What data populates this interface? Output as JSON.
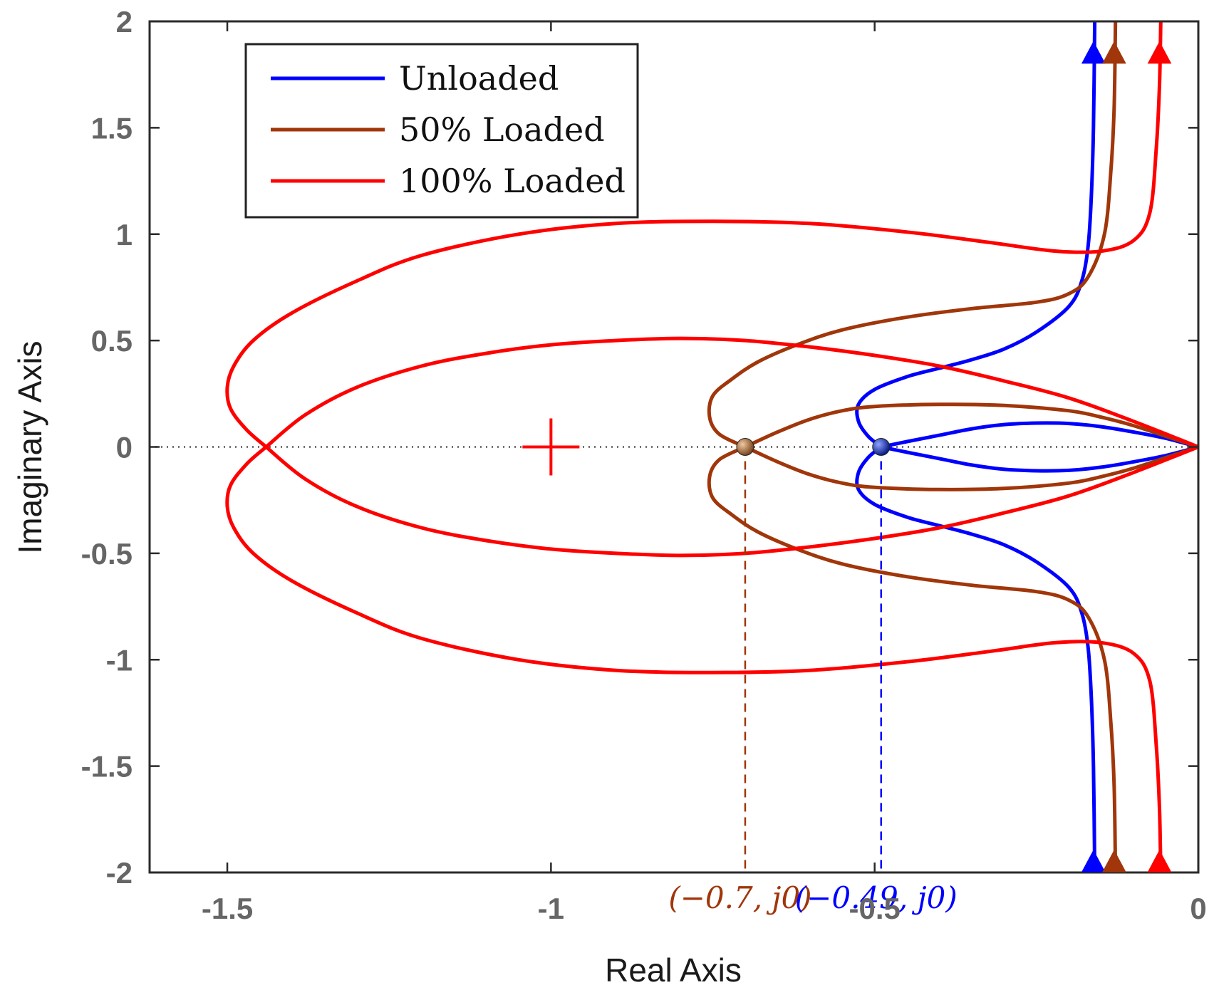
{
  "chart_data": {
    "type": "line",
    "title": "",
    "xlabel": "Real Axis",
    "ylabel": "Imaginary Axis",
    "xlim": [
      -1.62,
      0
    ],
    "ylim": [
      -2,
      2
    ],
    "grid": false,
    "legend_position": "top-left",
    "x_ticks": [
      {
        "value": -1.5,
        "label": "-1.5"
      },
      {
        "value": -1,
        "label": "-1"
      },
      {
        "value": -0.5,
        "label": "-0.5"
      },
      {
        "value": 0,
        "label": "0"
      }
    ],
    "y_ticks": [
      {
        "value": 2,
        "label": "2"
      },
      {
        "value": 1.5,
        "label": "1.5"
      },
      {
        "value": 1,
        "label": "1"
      },
      {
        "value": 0.5,
        "label": "0.5"
      },
      {
        "value": 0,
        "label": "0"
      },
      {
        "value": -0.5,
        "label": "-0.5"
      },
      {
        "value": -1,
        "label": "-1"
      },
      {
        "value": -1.5,
        "label": "-1.5"
      },
      {
        "value": -2,
        "label": "-2"
      }
    ],
    "series": [
      {
        "name": "Unloaded",
        "color": "#0000ff",
        "branches": [
          [
            [
              0,
              0
            ],
            [
              -0.05,
              0.04
            ],
            [
              -0.1,
              0.07
            ],
            [
              -0.15,
              0.095
            ],
            [
              -0.2,
              0.11
            ],
            [
              -0.25,
              0.112
            ],
            [
              -0.3,
              0.105
            ],
            [
              -0.35,
              0.085
            ],
            [
              -0.4,
              0.055
            ],
            [
              -0.45,
              0.025
            ],
            [
              -0.49,
              0
            ]
          ],
          [
            [
              0,
              0
            ],
            [
              -0.05,
              -0.04
            ],
            [
              -0.1,
              -0.07
            ],
            [
              -0.15,
              -0.095
            ],
            [
              -0.2,
              -0.11
            ],
            [
              -0.25,
              -0.112
            ],
            [
              -0.3,
              -0.105
            ],
            [
              -0.35,
              -0.085
            ],
            [
              -0.4,
              -0.055
            ],
            [
              -0.45,
              -0.025
            ],
            [
              -0.49,
              0
            ]
          ],
          [
            [
              -0.49,
              0
            ],
            [
              -0.51,
              0.05
            ],
            [
              -0.525,
              0.12
            ],
            [
              -0.525,
              0.2
            ],
            [
              -0.5,
              0.27
            ],
            [
              -0.45,
              0.33
            ],
            [
              -0.4,
              0.37
            ],
            [
              -0.35,
              0.41
            ],
            [
              -0.3,
              0.46
            ],
            [
              -0.25,
              0.54
            ],
            [
              -0.2,
              0.66
            ],
            [
              -0.18,
              0.78
            ],
            [
              -0.17,
              0.95
            ],
            [
              -0.165,
              1.2
            ],
            [
              -0.162,
              1.5
            ],
            [
              -0.16,
              2
            ]
          ],
          [
            [
              -0.49,
              0
            ],
            [
              -0.51,
              -0.05
            ],
            [
              -0.525,
              -0.12
            ],
            [
              -0.525,
              -0.2
            ],
            [
              -0.5,
              -0.27
            ],
            [
              -0.45,
              -0.33
            ],
            [
              -0.4,
              -0.37
            ],
            [
              -0.35,
              -0.41
            ],
            [
              -0.3,
              -0.46
            ],
            [
              -0.25,
              -0.54
            ],
            [
              -0.2,
              -0.66
            ],
            [
              -0.18,
              -0.78
            ],
            [
              -0.17,
              -0.95
            ],
            [
              -0.165,
              -1.2
            ],
            [
              -0.162,
              -1.5
            ],
            [
              -0.16,
              -2
            ]
          ]
        ],
        "arrows": [
          [
            -0.162,
            1.85
          ],
          [
            -0.162,
            -1.95
          ]
        ]
      },
      {
        "name": "50% Loaded",
        "color": "#a0360a",
        "branches": [
          [
            [
              0,
              0
            ],
            [
              -0.05,
              0.05
            ],
            [
              -0.1,
              0.1
            ],
            [
              -0.15,
              0.14
            ],
            [
              -0.2,
              0.17
            ],
            [
              -0.3,
              0.195
            ],
            [
              -0.4,
              0.2
            ],
            [
              -0.5,
              0.19
            ],
            [
              -0.55,
              0.17
            ],
            [
              -0.6,
              0.13
            ],
            [
              -0.65,
              0.07
            ],
            [
              -0.7,
              0
            ]
          ],
          [
            [
              0,
              0
            ],
            [
              -0.05,
              -0.05
            ],
            [
              -0.1,
              -0.1
            ],
            [
              -0.15,
              -0.14
            ],
            [
              -0.2,
              -0.17
            ],
            [
              -0.3,
              -0.195
            ],
            [
              -0.4,
              -0.2
            ],
            [
              -0.5,
              -0.19
            ],
            [
              -0.55,
              -0.17
            ],
            [
              -0.6,
              -0.13
            ],
            [
              -0.65,
              -0.07
            ],
            [
              -0.7,
              0
            ]
          ],
          [
            [
              -0.7,
              0
            ],
            [
              -0.74,
              0.06
            ],
            [
              -0.755,
              0.14
            ],
            [
              -0.75,
              0.24
            ],
            [
              -0.72,
              0.32
            ],
            [
              -0.68,
              0.4
            ],
            [
              -0.62,
              0.48
            ],
            [
              -0.55,
              0.55
            ],
            [
              -0.45,
              0.61
            ],
            [
              -0.35,
              0.65
            ],
            [
              -0.25,
              0.68
            ],
            [
              -0.2,
              0.72
            ],
            [
              -0.17,
              0.8
            ],
            [
              -0.145,
              1.0
            ],
            [
              -0.135,
              1.3
            ],
            [
              -0.13,
              1.6
            ],
            [
              -0.128,
              2
            ]
          ],
          [
            [
              -0.7,
              0
            ],
            [
              -0.74,
              -0.06
            ],
            [
              -0.755,
              -0.14
            ],
            [
              -0.75,
              -0.24
            ],
            [
              -0.72,
              -0.32
            ],
            [
              -0.68,
              -0.4
            ],
            [
              -0.62,
              -0.48
            ],
            [
              -0.55,
              -0.55
            ],
            [
              -0.45,
              -0.61
            ],
            [
              -0.35,
              -0.65
            ],
            [
              -0.25,
              -0.68
            ],
            [
              -0.2,
              -0.72
            ],
            [
              -0.17,
              -0.8
            ],
            [
              -0.145,
              -1.0
            ],
            [
              -0.135,
              -1.3
            ],
            [
              -0.13,
              -1.6
            ],
            [
              -0.128,
              -2
            ]
          ]
        ],
        "arrows": [
          [
            -0.13,
            1.85
          ],
          [
            -0.13,
            -1.95
          ]
        ]
      },
      {
        "name": "100% Loaded",
        "color": "#ff0000",
        "branches": [
          [
            [
              0,
              0
            ],
            [
              -0.1,
              0.12
            ],
            [
              -0.2,
              0.23
            ],
            [
              -0.3,
              0.31
            ],
            [
              -0.4,
              0.38
            ],
            [
              -0.5,
              0.43
            ],
            [
              -0.6,
              0.47
            ],
            [
              -0.7,
              0.5
            ],
            [
              -0.8,
              0.51
            ],
            [
              -0.9,
              0.5
            ],
            [
              -1.0,
              0.48
            ],
            [
              -1.1,
              0.44
            ],
            [
              -1.2,
              0.38
            ],
            [
              -1.3,
              0.28
            ],
            [
              -1.38,
              0.15
            ],
            [
              -1.44,
              0
            ]
          ],
          [
            [
              0,
              0
            ],
            [
              -0.1,
              -0.12
            ],
            [
              -0.2,
              -0.23
            ],
            [
              -0.3,
              -0.31
            ],
            [
              -0.4,
              -0.38
            ],
            [
              -0.5,
              -0.43
            ],
            [
              -0.6,
              -0.47
            ],
            [
              -0.7,
              -0.5
            ],
            [
              -0.8,
              -0.51
            ],
            [
              -0.9,
              -0.5
            ],
            [
              -1.0,
              -0.48
            ],
            [
              -1.1,
              -0.44
            ],
            [
              -1.2,
              -0.38
            ],
            [
              -1.3,
              -0.28
            ],
            [
              -1.38,
              -0.15
            ],
            [
              -1.44,
              0
            ]
          ],
          [
            [
              -1.44,
              0
            ],
            [
              -1.47,
              0.08
            ],
            [
              -1.495,
              0.18
            ],
            [
              -1.5,
              0.28
            ],
            [
              -1.49,
              0.38
            ],
            [
              -1.46,
              0.5
            ],
            [
              -1.4,
              0.63
            ],
            [
              -1.3,
              0.78
            ],
            [
              -1.2,
              0.9
            ],
            [
              -1.05,
              1.0
            ],
            [
              -0.9,
              1.05
            ],
            [
              -0.75,
              1.06
            ],
            [
              -0.6,
              1.05
            ],
            [
              -0.45,
              1.01
            ],
            [
              -0.32,
              0.96
            ],
            [
              -0.22,
              0.92
            ],
            [
              -0.15,
              0.92
            ],
            [
              -0.1,
              0.97
            ],
            [
              -0.075,
              1.1
            ],
            [
              -0.065,
              1.4
            ],
            [
              -0.06,
              1.7
            ],
            [
              -0.058,
              2
            ]
          ],
          [
            [
              -1.44,
              0
            ],
            [
              -1.47,
              -0.08
            ],
            [
              -1.495,
              -0.18
            ],
            [
              -1.5,
              -0.28
            ],
            [
              -1.49,
              -0.38
            ],
            [
              -1.46,
              -0.5
            ],
            [
              -1.4,
              -0.63
            ],
            [
              -1.3,
              -0.78
            ],
            [
              -1.2,
              -0.9
            ],
            [
              -1.05,
              -1.0
            ],
            [
              -0.9,
              -1.05
            ],
            [
              -0.75,
              -1.06
            ],
            [
              -0.6,
              -1.05
            ],
            [
              -0.45,
              -1.01
            ],
            [
              -0.32,
              -0.96
            ],
            [
              -0.22,
              -0.92
            ],
            [
              -0.15,
              -0.92
            ],
            [
              -0.1,
              -0.97
            ],
            [
              -0.075,
              -1.1
            ],
            [
              -0.065,
              -1.4
            ],
            [
              -0.06,
              -1.7
            ],
            [
              -0.058,
              -2
            ]
          ]
        ],
        "arrows": [
          [
            -0.06,
            1.85
          ],
          [
            -0.06,
            -1.95
          ]
        ]
      }
    ],
    "markers": [
      {
        "name": "50% breakaway",
        "x": -0.7,
        "y": 0,
        "color": "#b06a3a",
        "label": "(−0.7, j0)",
        "label_color": "#a0360a"
      },
      {
        "name": "Unloaded breakaway",
        "x": -0.49,
        "y": 0,
        "color": "#1a3ab8",
        "label": "(−0.49, j0)",
        "label_color": "#0000ff"
      }
    ],
    "pole": {
      "x": -1,
      "y": 0,
      "color": "#ff0000"
    },
    "zero_line": {
      "y": 0,
      "style": "dotted"
    }
  }
}
